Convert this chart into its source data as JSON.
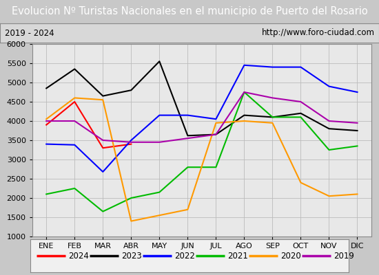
{
  "title": "Evolucion Nº Turistas Nacionales en el municipio de Puerto del Rosario",
  "subtitle_left": "2019 - 2024",
  "subtitle_right": "http://www.foro-ciudad.com",
  "x_labels": [
    "ENE",
    "FEB",
    "MAR",
    "ABR",
    "MAY",
    "JUN",
    "JUL",
    "AGO",
    "SEP",
    "OCT",
    "NOV",
    "DIC"
  ],
  "ylim": [
    1000,
    6000
  ],
  "yticks": [
    1000,
    1500,
    2000,
    2500,
    3000,
    3500,
    4000,
    4500,
    5000,
    5500,
    6000
  ],
  "series": {
    "2024": {
      "data": [
        3900,
        4500,
        3300,
        3400,
        null,
        null,
        null,
        null,
        null,
        null,
        null,
        null
      ],
      "color": "#ff0000",
      "linewidth": 1.5
    },
    "2023": {
      "data": [
        4850,
        5350,
        4650,
        4800,
        5550,
        3620,
        3650,
        4150,
        4100,
        4200,
        3800,
        3750
      ],
      "color": "#000000",
      "linewidth": 1.5
    },
    "2022": {
      "data": [
        3400,
        3380,
        2680,
        3500,
        4150,
        4150,
        4050,
        5450,
        5400,
        5400,
        4900,
        4750
      ],
      "color": "#0000ff",
      "linewidth": 1.5
    },
    "2021": {
      "data": [
        2100,
        2250,
        1650,
        2000,
        2150,
        2800,
        2800,
        4750,
        4100,
        4100,
        3250,
        3350
      ],
      "color": "#00bb00",
      "linewidth": 1.5
    },
    "2020": {
      "data": [
        4050,
        4600,
        4550,
        1400,
        1550,
        1700,
        3950,
        4000,
        3950,
        2400,
        2050,
        2100
      ],
      "color": "#ff9900",
      "linewidth": 1.5
    },
    "2019": {
      "data": [
        4000,
        4000,
        3500,
        3450,
        3450,
        3550,
        3650,
        4750,
        4600,
        4500,
        4000,
        3950
      ],
      "color": "#aa00aa",
      "linewidth": 1.5
    }
  },
  "title_bg": "#3366cc",
  "title_color": "#ffffff",
  "title_fontsize": 10.5,
  "subtitle_fontsize": 8.5,
  "tick_fontsize": 8,
  "legend_order": [
    "2024",
    "2023",
    "2022",
    "2021",
    "2020",
    "2019"
  ],
  "outer_bg": "#c8c8c8",
  "plot_bg": "#e8e8e8",
  "subtitle_bg": "#d8d8d8",
  "grid_color": "#bbbbbb"
}
